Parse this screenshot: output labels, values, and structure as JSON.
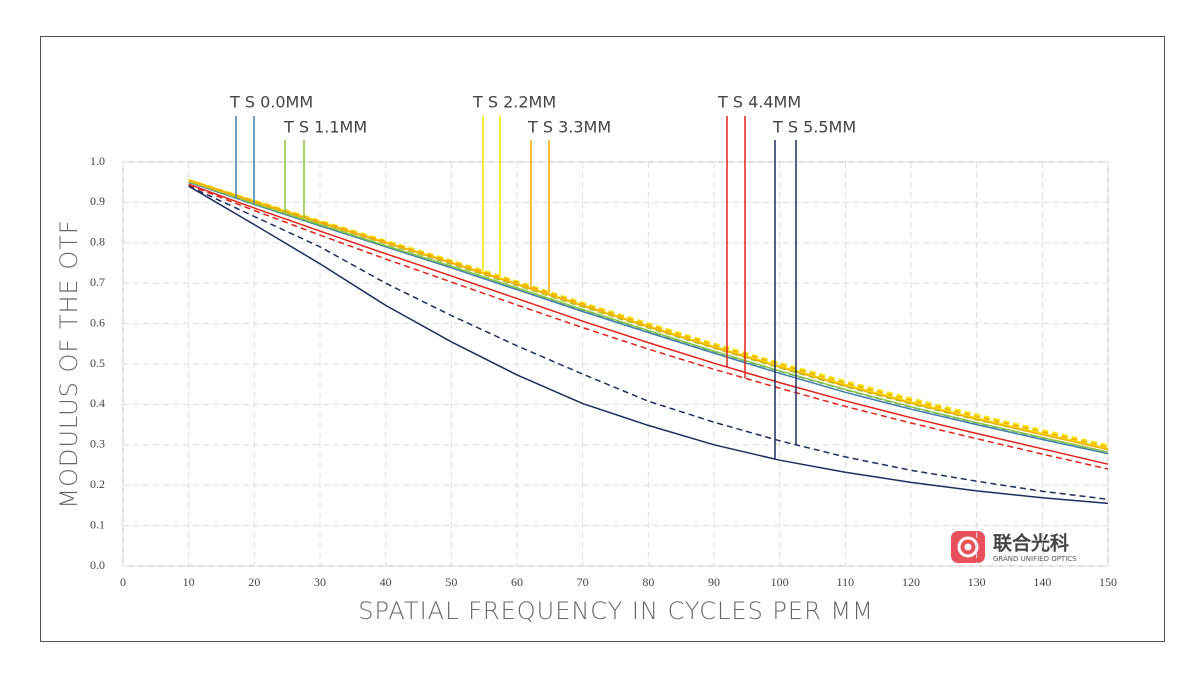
{
  "chart_data": {
    "type": "line",
    "xlabel": "SPATIAL FREQUENCY IN CYCLES PER MM",
    "ylabel": "MODULUS OF THE OTF",
    "x": [
      10,
      20,
      30,
      40,
      50,
      60,
      70,
      80,
      90,
      100,
      110,
      120,
      130,
      140,
      150
    ],
    "series": [
      {
        "name": "T S 0.0MM",
        "color": "#3f7fab",
        "tangential": [
          0.95,
          0.895,
          0.842,
          0.79,
          0.738,
          0.684,
          0.63,
          0.578,
          0.527,
          0.477,
          0.43,
          0.388,
          0.35,
          0.313,
          0.278
        ],
        "sagittal": [
          0.95,
          0.897,
          0.845,
          0.793,
          0.742,
          0.688,
          0.634,
          0.582,
          0.531,
          0.482,
          0.436,
          0.393,
          0.354,
          0.317,
          0.282
        ]
      },
      {
        "name": "T S 1.1MM",
        "color": "#8cc63f",
        "tangential": [
          0.952,
          0.897,
          0.845,
          0.793,
          0.742,
          0.688,
          0.635,
          0.583,
          0.532,
          0.483,
          0.437,
          0.394,
          0.355,
          0.318,
          0.282
        ],
        "sagittal": [
          0.952,
          0.9,
          0.849,
          0.798,
          0.747,
          0.694,
          0.641,
          0.589,
          0.539,
          0.49,
          0.444,
          0.401,
          0.362,
          0.325,
          0.289
        ]
      },
      {
        "name": "T S 2.2MM",
        "color": "#f4e600",
        "tangential": [
          0.955,
          0.902,
          0.851,
          0.801,
          0.751,
          0.698,
          0.645,
          0.593,
          0.542,
          0.494,
          0.448,
          0.405,
          0.365,
          0.327,
          0.29
        ],
        "sagittal": [
          0.955,
          0.904,
          0.854,
          0.805,
          0.756,
          0.704,
          0.651,
          0.6,
          0.55,
          0.502,
          0.457,
          0.414,
          0.374,
          0.336,
          0.298
        ]
      },
      {
        "name": "T S 3.3MM",
        "color": "#f5aa00",
        "tangential": [
          0.955,
          0.901,
          0.85,
          0.8,
          0.75,
          0.697,
          0.644,
          0.592,
          0.541,
          0.492,
          0.446,
          0.403,
          0.363,
          0.325,
          0.288
        ],
        "sagittal": [
          0.955,
          0.903,
          0.853,
          0.803,
          0.754,
          0.702,
          0.649,
          0.597,
          0.547,
          0.499,
          0.453,
          0.41,
          0.37,
          0.332,
          0.294
        ]
      },
      {
        "name": "T S 4.4MM",
        "color": "#e2231a",
        "tangential": [
          0.945,
          0.886,
          0.829,
          0.773,
          0.718,
          0.662,
          0.606,
          0.553,
          0.502,
          0.454,
          0.409,
          0.367,
          0.328,
          0.29,
          0.252
        ],
        "sagittal": [
          0.943,
          0.88,
          0.819,
          0.76,
          0.703,
          0.646,
          0.59,
          0.537,
          0.487,
          0.44,
          0.395,
          0.354,
          0.315,
          0.277,
          0.24
        ]
      },
      {
        "name": "T S 5.5MM",
        "color": "#1b2e5e",
        "tangential": [
          0.94,
          0.845,
          0.748,
          0.645,
          0.555,
          0.473,
          0.402,
          0.348,
          0.3,
          0.262,
          0.232,
          0.207,
          0.186,
          0.169,
          0.155
        ],
        "sagittal": [
          0.94,
          0.865,
          0.79,
          0.7,
          0.62,
          0.545,
          0.475,
          0.408,
          0.356,
          0.31,
          0.27,
          0.237,
          0.21,
          0.185,
          0.165
        ]
      }
    ],
    "xlim": [
      0,
      150
    ],
    "xticks": [
      0,
      10,
      20,
      30,
      40,
      50,
      60,
      70,
      80,
      90,
      100,
      110,
      120,
      130,
      140,
      150
    ],
    "ylim": [
      0,
      1
    ],
    "yticks": [
      {
        "value": 0,
        "label": "0.0"
      },
      0.1,
      0.2,
      0.3,
      0.4,
      0.5,
      0.6,
      0.7,
      0.8,
      0.9,
      {
        "value": 1,
        "label": "1.0"
      }
    ],
    "grid": true,
    "logo": {
      "name": "联合光科",
      "subtitle": "GRAND UNIFIED OPTICS"
    }
  }
}
